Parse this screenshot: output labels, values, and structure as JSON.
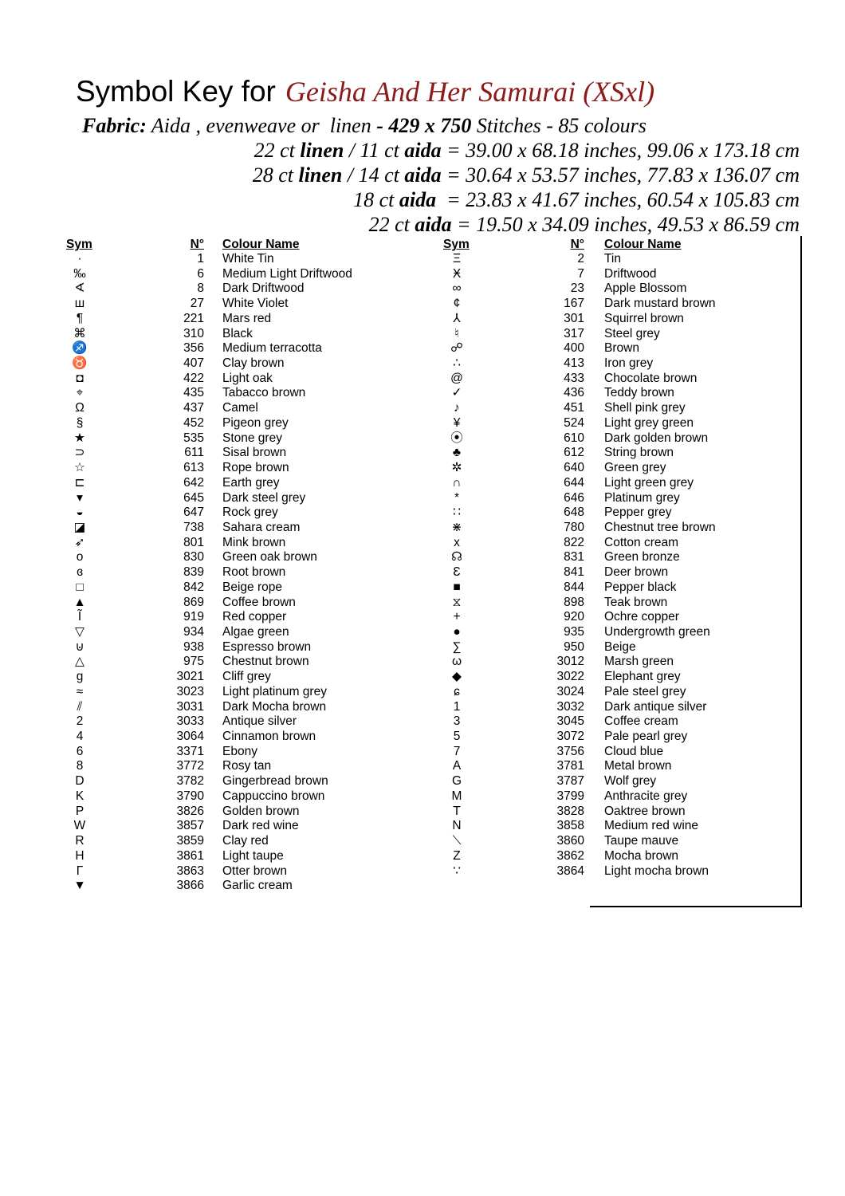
{
  "header": {
    "title_prefix": "Symbol Key for",
    "title_name": "Geisha And Her Samurai (XSxl)",
    "fabric": {
      "label": "Fabric:",
      "parts": [
        "Aida , evenweave or  linen ",
        "- 429 x 750",
        " Stitches - 85 colours"
      ]
    },
    "sizes": [
      [
        "22 ct ",
        "linen",
        " / 11 ct ",
        "aida",
        " = 39.00 x 68.18 inches, 99.06 x 173.18 cm"
      ],
      [
        "28 ct ",
        "linen",
        " / 14 ct ",
        "aida",
        " = 30.64 x 53.57 inches, 77.83 x 136.07 cm"
      ],
      [
        "18 ct ",
        "aida",
        "  = 23.83 x 41.67 inches, 60.54 x 105.83 cm"
      ],
      [
        "22 ct ",
        "aida",
        " = 19.50 x 34.09 inches, 49.53 x 86.59 cm"
      ]
    ]
  },
  "table": {
    "columns": [
      "Sym",
      "N°",
      "Colour Name"
    ],
    "left": [
      [
        "·",
        1,
        "White Tin"
      ],
      [
        "‰",
        6,
        "Medium Light Driftwood"
      ],
      [
        "∢",
        8,
        "Dark Driftwood"
      ],
      [
        "ш",
        27,
        "White Violet"
      ],
      [
        "¶",
        221,
        "Mars red"
      ],
      [
        "⌘",
        310,
        "Black"
      ],
      [
        "♐",
        356,
        "Medium terracotta"
      ],
      [
        "♉",
        407,
        "Clay brown"
      ],
      [
        "◘",
        422,
        "Light oak"
      ],
      [
        "⌖",
        435,
        "Tabacco brown"
      ],
      [
        "Ω",
        437,
        "Camel"
      ],
      [
        "§",
        452,
        "Pigeon grey"
      ],
      [
        "★",
        535,
        "Stone grey"
      ],
      [
        "⊃",
        611,
        "Sisal brown"
      ],
      [
        "☆",
        613,
        "Rope brown"
      ],
      [
        "⊏",
        642,
        "Earth grey"
      ],
      [
        "▾",
        645,
        "Dark steel grey"
      ],
      [
        "◒",
        647,
        "Rock grey"
      ],
      [
        "◪",
        738,
        "Sahara cream"
      ],
      [
        "➶",
        801,
        "Mink brown"
      ],
      [
        "o",
        830,
        "Green oak brown"
      ],
      [
        "ɞ",
        839,
        "Root brown"
      ],
      [
        "□",
        842,
        "Beige rope"
      ],
      [
        "▲",
        869,
        "Coffee brown"
      ],
      [
        "Ĩ",
        919,
        "Red copper"
      ],
      [
        "▽",
        934,
        "Algae green"
      ],
      [
        "⊍",
        938,
        "Espresso brown"
      ],
      [
        "△",
        975,
        "Chestnut brown"
      ],
      [
        "g",
        3021,
        "Cliff grey"
      ],
      [
        "≈",
        3023,
        "Light platinum grey"
      ],
      [
        "⫽",
        3031,
        "Dark Mocha brown"
      ],
      [
        "2",
        3033,
        "Antique silver"
      ],
      [
        "4",
        3064,
        "Cinnamon brown"
      ],
      [
        "6",
        3371,
        "Ebony"
      ],
      [
        "8",
        3772,
        "Rosy tan"
      ],
      [
        "D",
        3782,
        "Gingerbread brown"
      ],
      [
        "K",
        3790,
        "Cappuccino brown"
      ],
      [
        "P",
        3826,
        "Golden brown"
      ],
      [
        "W",
        3857,
        "Dark red wine"
      ],
      [
        "R",
        3859,
        "Clay red"
      ],
      [
        "H",
        3861,
        "Light taupe"
      ],
      [
        "Γ",
        3863,
        "Otter brown"
      ],
      [
        "▼",
        3866,
        "Garlic cream"
      ]
    ],
    "right": [
      [
        "Ξ",
        2,
        "Tin"
      ],
      [
        "Ӿ",
        7,
        "Driftwood"
      ],
      [
        "∞",
        23,
        "Apple Blossom"
      ],
      [
        "¢",
        167,
        "Dark mustard brown"
      ],
      [
        "⅄",
        301,
        "Squirrel brown"
      ],
      [
        "♮",
        317,
        "Steel grey"
      ],
      [
        "☍",
        400,
        "Brown"
      ],
      [
        "∴",
        413,
        "Iron grey"
      ],
      [
        "@",
        433,
        "Chocolate brown"
      ],
      [
        "✓",
        436,
        "Teddy brown"
      ],
      [
        "♪",
        451,
        "Shell pink grey"
      ],
      [
        "¥",
        524,
        "Light grey green"
      ],
      [
        "⦿",
        610,
        "Dark golden brown"
      ],
      [
        "♣",
        612,
        "String brown"
      ],
      [
        "✲",
        640,
        "Green grey"
      ],
      [
        "∩",
        644,
        "Light green grey"
      ],
      [
        "*",
        646,
        "Platinum grey"
      ],
      [
        "∷",
        648,
        "Pepper grey"
      ],
      [
        "⋇",
        780,
        "Chestnut tree brown"
      ],
      [
        "x",
        822,
        "Cotton cream"
      ],
      [
        "☊",
        831,
        "Green bronze"
      ],
      [
        "Ɛ",
        841,
        "Deer brown"
      ],
      [
        "■",
        844,
        "Pepper black"
      ],
      [
        "⧖",
        898,
        "Teak brown"
      ],
      [
        "+",
        920,
        "Ochre copper"
      ],
      [
        "●",
        935,
        "Undergrowth green"
      ],
      [
        "∑",
        950,
        "Beige"
      ],
      [
        "ω",
        3012,
        "Marsh green"
      ],
      [
        "◆",
        3022,
        "Elephant grey"
      ],
      [
        "ɕ",
        3024,
        "Pale steel grey"
      ],
      [
        "1",
        3032,
        "Dark antique silver"
      ],
      [
        "3",
        3045,
        "Coffee cream"
      ],
      [
        "5",
        3072,
        "Pale pearl grey"
      ],
      [
        "7",
        3756,
        "Cloud blue"
      ],
      [
        "A",
        3781,
        "Metal brown"
      ],
      [
        "G",
        3787,
        "Wolf grey"
      ],
      [
        "M",
        3799,
        "Anthracite grey"
      ],
      [
        "T",
        3828,
        "Oaktree brown"
      ],
      [
        "N",
        3858,
        "Medium red wine"
      ],
      [
        "⟍",
        3860,
        "Taupe mauve"
      ],
      [
        "Z",
        3862,
        "Mocha brown"
      ],
      [
        "∵",
        3864,
        "Light mocha brown"
      ]
    ]
  }
}
